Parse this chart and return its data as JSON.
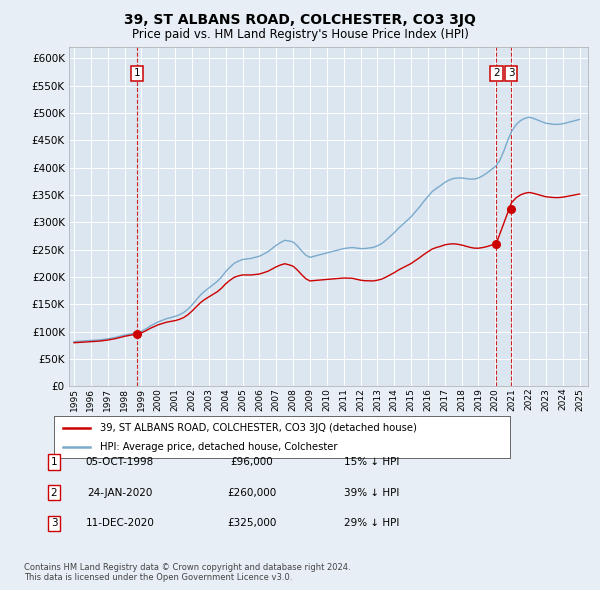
{
  "title": "39, ST ALBANS ROAD, COLCHESTER, CO3 3JQ",
  "subtitle": "Price paid vs. HM Land Registry's House Price Index (HPI)",
  "ylim": [
    0,
    620000
  ],
  "xlim": [
    1994.7,
    2025.5
  ],
  "sales": [
    {
      "date": 1998.75,
      "price": 96000,
      "label": "1"
    },
    {
      "date": 2020.06,
      "price": 260000,
      "label": "2"
    },
    {
      "date": 2020.94,
      "price": 325000,
      "label": "3"
    }
  ],
  "sale_labels_table": [
    {
      "num": "1",
      "date": "05-OCT-1998",
      "price": "£96,000",
      "note": "15% ↓ HPI"
    },
    {
      "num": "2",
      "date": "24-JAN-2020",
      "price": "£260,000",
      "note": "39% ↓ HPI"
    },
    {
      "num": "3",
      "date": "11-DEC-2020",
      "price": "£325,000",
      "note": "29% ↓ HPI"
    }
  ],
  "legend_entries": [
    {
      "label": "39, ST ALBANS ROAD, COLCHESTER, CO3 3JQ (detached house)",
      "color": "#cc0000"
    },
    {
      "label": "HPI: Average price, detached house, Colchester",
      "color": "#6699cc"
    }
  ],
  "footer": "Contains HM Land Registry data © Crown copyright and database right 2024.\nThis data is licensed under the Open Government Licence v3.0.",
  "bg_color": "#e8eef5",
  "plot_bg_color": "#dce6f0",
  "grid_color": "#ffffff",
  "red_line_color": "#cc0000",
  "blue_line_color": "#7aaacc"
}
